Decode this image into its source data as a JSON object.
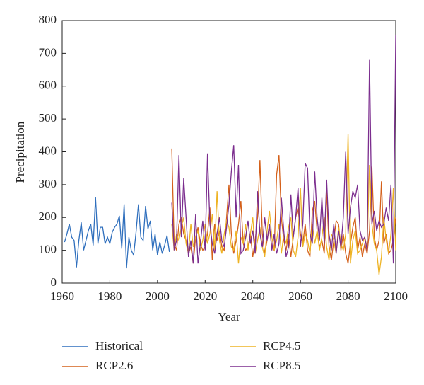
{
  "chart_data": {
    "type": "line",
    "xlabel": "Year",
    "ylabel": "Precipitation",
    "xlim": [
      1960,
      2100
    ],
    "xticks": [
      1960,
      1980,
      2000,
      2020,
      2040,
      2060,
      2080,
      2100
    ],
    "ylim": [
      0,
      800
    ],
    "yticks": [
      0,
      100,
      200,
      300,
      400,
      500,
      600,
      700,
      800
    ],
    "grid": false,
    "legend": "bottom",
    "series": [
      {
        "name": "Historical",
        "color": "#2f6fbd",
        "x": [
          1961,
          1962,
          1963,
          1964,
          1965,
          1966,
          1967,
          1968,
          1969,
          1970,
          1971,
          1972,
          1973,
          1974,
          1975,
          1976,
          1977,
          1978,
          1979,
          1980,
          1981,
          1982,
          1983,
          1984,
          1985,
          1986,
          1987,
          1988,
          1989,
          1990,
          1991,
          1992,
          1993,
          1994,
          1995,
          1996,
          1997,
          1998,
          1999,
          2000,
          2001,
          2002,
          2003,
          2004,
          2005
        ],
        "values": [
          125,
          150,
          180,
          140,
          130,
          48,
          130,
          185,
          100,
          130,
          160,
          180,
          115,
          262,
          120,
          170,
          170,
          120,
          140,
          120,
          155,
          170,
          180,
          205,
          105,
          240,
          45,
          140,
          100,
          85,
          155,
          240,
          140,
          130,
          235,
          165,
          190,
          100,
          150,
          85,
          125,
          90,
          115,
          145,
          95
        ]
      },
      {
        "name": "RCP2.6",
        "color": "#d4601a",
        "x": [
          2006,
          2007,
          2008,
          2009,
          2010,
          2011,
          2012,
          2013,
          2014,
          2015,
          2016,
          2017,
          2018,
          2019,
          2020,
          2021,
          2022,
          2023,
          2024,
          2025,
          2026,
          2027,
          2028,
          2029,
          2030,
          2031,
          2032,
          2033,
          2034,
          2035,
          2036,
          2037,
          2038,
          2039,
          2040,
          2041,
          2042,
          2043,
          2044,
          2045,
          2046,
          2047,
          2048,
          2049,
          2050,
          2051,
          2052,
          2053,
          2054,
          2055,
          2056,
          2057,
          2058,
          2059,
          2060,
          2061,
          2062,
          2063,
          2064,
          2065,
          2066,
          2067,
          2068,
          2069,
          2070,
          2071,
          2072,
          2073,
          2074,
          2075,
          2076,
          2077,
          2078,
          2079,
          2080,
          2081,
          2082,
          2083,
          2084,
          2085,
          2086,
          2087,
          2088,
          2089,
          2090,
          2091,
          2092,
          2093,
          2094,
          2095,
          2096,
          2097,
          2098,
          2099,
          2100
        ],
        "values": [
          410,
          120,
          100,
          180,
          200,
          150,
          130,
          90,
          110,
          60,
          140,
          170,
          120,
          100,
          110,
          150,
          230,
          70,
          180,
          130,
          160,
          110,
          100,
          200,
          300,
          150,
          90,
          130,
          180,
          250,
          120,
          100,
          110,
          150,
          80,
          130,
          200,
          375,
          150,
          90,
          130,
          170,
          110,
          100,
          330,
          390,
          200,
          130,
          100,
          150,
          80,
          140,
          200,
          230,
          150,
          120,
          180,
          100,
          80,
          220,
          250,
          160,
          110,
          130,
          90,
          280,
          110,
          70,
          130,
          190,
          180,
          100,
          150,
          90,
          60,
          120,
          170,
          200,
          100,
          140,
          80,
          120,
          90,
          160,
          355,
          140,
          100,
          130,
          310,
          120,
          150,
          90,
          100,
          130,
          200
        ]
      },
      {
        "name": "RCP4.5",
        "color": "#eeb323",
        "x": [
          2006,
          2007,
          2008,
          2009,
          2010,
          2011,
          2012,
          2013,
          2014,
          2015,
          2016,
          2017,
          2018,
          2019,
          2020,
          2021,
          2022,
          2023,
          2024,
          2025,
          2026,
          2027,
          2028,
          2029,
          2030,
          2031,
          2032,
          2033,
          2034,
          2035,
          2036,
          2037,
          2038,
          2039,
          2040,
          2041,
          2042,
          2043,
          2044,
          2045,
          2046,
          2047,
          2048,
          2049,
          2050,
          2051,
          2052,
          2053,
          2054,
          2055,
          2056,
          2057,
          2058,
          2059,
          2060,
          2061,
          2062,
          2063,
          2064,
          2065,
          2066,
          2067,
          2068,
          2069,
          2070,
          2071,
          2072,
          2073,
          2074,
          2075,
          2076,
          2077,
          2078,
          2079,
          2080,
          2081,
          2082,
          2083,
          2084,
          2085,
          2086,
          2087,
          2088,
          2089,
          2090,
          2091,
          2092,
          2093,
          2094,
          2095,
          2096,
          2097,
          2098,
          2099,
          2100
        ],
        "values": [
          180,
          100,
          150,
          130,
          170,
          200,
          120,
          90,
          180,
          110,
          140,
          160,
          100,
          130,
          180,
          120,
          150,
          210,
          100,
          280,
          130,
          90,
          150,
          190,
          170,
          110,
          100,
          160,
          60,
          140,
          120,
          180,
          100,
          150,
          200,
          90,
          130,
          170,
          110,
          80,
          160,
          220,
          140,
          100,
          130,
          180,
          90,
          150,
          120,
          170,
          200,
          100,
          80,
          140,
          290,
          110,
          150,
          130,
          90,
          180,
          120,
          160,
          100,
          140,
          200,
          110,
          70,
          150,
          130,
          90,
          170,
          120,
          100,
          150,
          455,
          60,
          130,
          160,
          90,
          100,
          120,
          140,
          110,
          360,
          180,
          120,
          100,
          25,
          80,
          200,
          130,
          90,
          150,
          290,
          100
        ]
      },
      {
        "name": "RCP8.5",
        "color": "#7b2d8e",
        "x": [
          2006,
          2007,
          2008,
          2009,
          2010,
          2011,
          2012,
          2013,
          2014,
          2015,
          2016,
          2017,
          2018,
          2019,
          2020,
          2021,
          2022,
          2023,
          2024,
          2025,
          2026,
          2027,
          2028,
          2029,
          2030,
          2031,
          2032,
          2033,
          2034,
          2035,
          2036,
          2037,
          2038,
          2039,
          2040,
          2041,
          2042,
          2043,
          2044,
          2045,
          2046,
          2047,
          2048,
          2049,
          2050,
          2051,
          2052,
          2053,
          2054,
          2055,
          2056,
          2057,
          2058,
          2059,
          2060,
          2061,
          2062,
          2063,
          2064,
          2065,
          2066,
          2067,
          2068,
          2069,
          2070,
          2071,
          2072,
          2073,
          2074,
          2075,
          2076,
          2077,
          2078,
          2079,
          2080,
          2081,
          2082,
          2083,
          2084,
          2085,
          2086,
          2087,
          2088,
          2089,
          2090,
          2091,
          2092,
          2093,
          2094,
          2095,
          2096,
          2097,
          2098,
          2099,
          2100
        ],
        "values": [
          245,
          100,
          130,
          390,
          140,
          320,
          200,
          80,
          130,
          60,
          210,
          60,
          120,
          190,
          100,
          395,
          180,
          120,
          90,
          150,
          200,
          130,
          110,
          170,
          240,
          340,
          420,
          200,
          360,
          90,
          100,
          140,
          190,
          120,
          160,
          90,
          280,
          150,
          110,
          200,
          130,
          180,
          100,
          150,
          90,
          120,
          260,
          160,
          80,
          110,
          270,
          140,
          200,
          290,
          110,
          180,
          365,
          350,
          150,
          120,
          340,
          200,
          130,
          260,
          120,
          315,
          150,
          100,
          180,
          90,
          160,
          110,
          200,
          400,
          150,
          230,
          280,
          260,
          300,
          160,
          130,
          140,
          100,
          680,
          180,
          220,
          160,
          190,
          170,
          180,
          230,
          190,
          300,
          60,
          755
        ]
      }
    ]
  }
}
